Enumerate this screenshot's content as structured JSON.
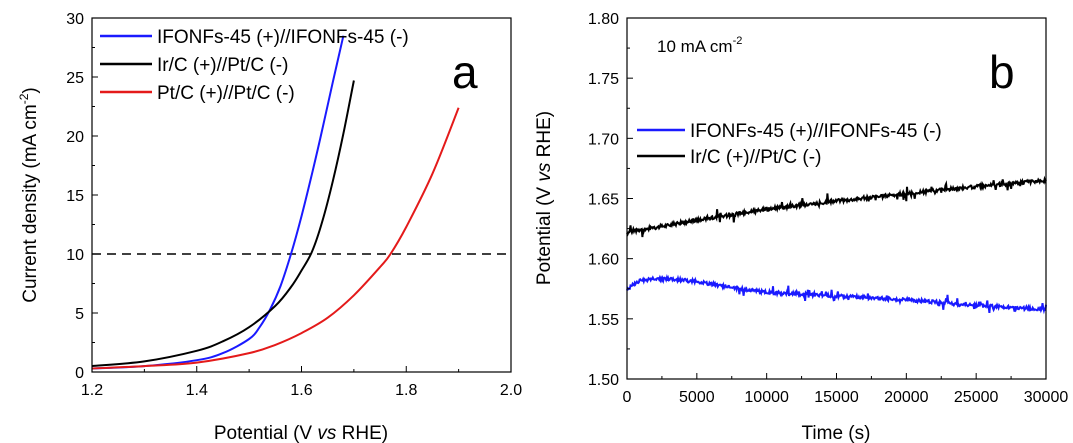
{
  "chart_data": [
    {
      "type": "line",
      "panel_label": "a",
      "xlabel_parts": {
        "pre": "Potential (V ",
        "italic": "vs",
        "post": " RHE)"
      },
      "ylabel_parts": {
        "pre": "Current density (mA cm",
        "sup": "-2",
        "post": ")"
      },
      "xlim": [
        1.2,
        2.0
      ],
      "ylim": [
        0,
        30
      ],
      "xticks": [
        "1.2",
        "1.4",
        "1.6",
        "1.8",
        "2.0"
      ],
      "yticks": [
        "0",
        "5",
        "10",
        "15",
        "20",
        "25",
        "30"
      ],
      "legend_position": "top-left",
      "reference_line": {
        "y": 10,
        "style": "dashed"
      },
      "series": [
        {
          "name": "IFONFs-45 (+)//IFONFs-45 (-)",
          "color": "#1a1aff",
          "x": [
            1.2,
            1.3,
            1.4,
            1.45,
            1.5,
            1.52,
            1.54,
            1.56,
            1.58,
            1.6,
            1.62,
            1.64,
            1.66,
            1.68
          ],
          "y": [
            0.3,
            0.5,
            1.0,
            1.6,
            2.8,
            3.8,
            5.3,
            7.3,
            10.0,
            13.2,
            16.8,
            20.6,
            24.6,
            28.5
          ]
        },
        {
          "name": "Ir/C (+)//Pt/C (-)",
          "color": "#000000",
          "x": [
            1.2,
            1.3,
            1.4,
            1.45,
            1.5,
            1.55,
            1.58,
            1.6,
            1.62,
            1.64,
            1.66,
            1.68,
            1.7
          ],
          "y": [
            0.5,
            0.9,
            1.8,
            2.6,
            3.8,
            5.6,
            7.2,
            8.6,
            10.2,
            12.8,
            16.2,
            20.2,
            24.7
          ]
        },
        {
          "name": "Pt/C (+)//Pt/C (-)",
          "color": "#e41a1a",
          "x": [
            1.2,
            1.3,
            1.4,
            1.5,
            1.55,
            1.6,
            1.65,
            1.7,
            1.75,
            1.77,
            1.8,
            1.85,
            1.9
          ],
          "y": [
            0.3,
            0.5,
            0.8,
            1.6,
            2.3,
            3.3,
            4.6,
            6.5,
            8.9,
            10.0,
            12.3,
            16.8,
            22.4
          ]
        }
      ]
    },
    {
      "type": "line",
      "panel_label": "b",
      "annotation_parts": {
        "pre": "10 mA cm",
        "sup": "-2"
      },
      "xlabel": "Time (s)",
      "ylabel_parts": {
        "pre": "Potential (V ",
        "italic": "vs",
        "post": " RHE)"
      },
      "xlim": [
        0,
        30000
      ],
      "ylim": [
        1.5,
        1.8
      ],
      "xticks": [
        "0",
        "5000",
        "10000",
        "15000",
        "20000",
        "25000",
        "30000"
      ],
      "yticks": [
        "1.50",
        "1.55",
        "1.60",
        "1.65",
        "1.70",
        "1.75",
        "1.80"
      ],
      "legend_position": "center-left",
      "series": [
        {
          "name": "IFONFs-45 (+)//IFONFs-45 (-)",
          "color": "#1a1aff",
          "x": [
            0,
            1000,
            2000,
            3000,
            5000,
            7000,
            10000,
            15000,
            20000,
            25000,
            30000
          ],
          "y": [
            1.575,
            1.582,
            1.583,
            1.583,
            1.581,
            1.577,
            1.572,
            1.569,
            1.566,
            1.561,
            1.558
          ]
        },
        {
          "name": "Ir/C (+)//Pt/C (-)",
          "color": "#000000",
          "x": [
            0,
            2000,
            5000,
            10000,
            15000,
            20000,
            25000,
            30000
          ],
          "y": [
            1.622,
            1.626,
            1.632,
            1.641,
            1.648,
            1.654,
            1.66,
            1.665
          ]
        }
      ]
    }
  ]
}
